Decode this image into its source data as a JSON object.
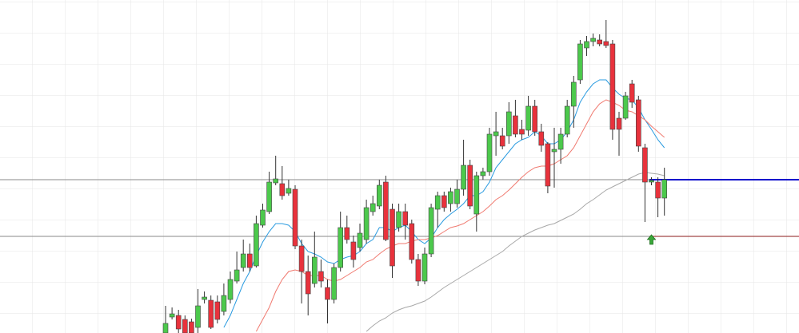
{
  "chart_data": {
    "type": "candlestick",
    "categories": [
      null,
      null,
      null,
      null,
      null,
      null,
      null,
      null,
      null,
      null,
      null,
      null,
      null,
      null,
      null,
      null,
      null,
      null,
      null,
      null,
      null,
      null,
      null,
      null,
      null,
      null,
      null,
      null,
      null,
      null,
      null,
      null,
      null,
      null,
      null,
      null,
      null,
      null,
      null,
      null,
      null,
      null,
      null,
      null,
      null,
      null,
      null,
      null,
      null,
      null,
      null,
      null,
      null,
      null,
      null,
      null,
      null,
      null,
      null,
      null,
      null,
      null,
      null,
      null,
      null,
      null,
      null,
      null,
      null,
      null,
      null,
      null,
      null,
      null,
      null,
      null,
      null,
      null
    ],
    "open": [
      0,
      20,
      22,
      17,
      14,
      7,
      42,
      41,
      39,
      27,
      42,
      65,
      82,
      99,
      84,
      135,
      152,
      188,
      187,
      175,
      180,
      109,
      77,
      62,
      77,
      57,
      42,
      82,
      132,
      114,
      107,
      117,
      152,
      159,
      189,
      155,
      132,
      152,
      137,
      92,
      65,
      99,
      155,
      172,
      162,
      162,
      180,
      210,
      149,
      197,
      202,
      247,
      247,
      247,
      272,
      255,
      254,
      284,
      252,
      237,
      227,
      230,
      249,
      284,
      317,
      357,
      365,
      367,
      365,
      362,
      269,
      269,
      312,
      292,
      232,
      189,
      189,
      169
    ],
    "high": [
      34,
      32,
      29,
      22,
      18,
      55,
      52,
      47,
      47,
      62,
      77,
      102,
      117,
      112,
      147,
      162,
      202,
      222,
      209,
      192,
      185,
      117,
      97,
      127,
      92,
      67,
      87,
      152,
      147,
      122,
      137,
      167,
      172,
      192,
      197,
      162,
      162,
      162,
      142,
      99,
      107,
      162,
      177,
      177,
      182,
      192,
      242,
      217,
      202,
      207,
      257,
      277,
      257,
      289,
      292,
      267,
      297,
      292,
      262,
      239,
      257,
      257,
      292,
      322,
      367,
      372,
      375,
      374,
      392,
      367,
      277,
      302,
      317,
      297,
      237,
      195,
      195,
      207
    ],
    "low": [
      0,
      17,
      0,
      0,
      0,
      0,
      37,
      5,
      12,
      22,
      37,
      62,
      77,
      77,
      82,
      132,
      149,
      185,
      167,
      172,
      105,
      37,
      22,
      57,
      57,
      12,
      37,
      77,
      112,
      82,
      102,
      112,
      147,
      155,
      115,
      69,
      127,
      117,
      87,
      59,
      61,
      95,
      132,
      152,
      152,
      157,
      172,
      155,
      127,
      192,
      197,
      222,
      230,
      237,
      245,
      242,
      247,
      247,
      227,
      175,
      182,
      212,
      245,
      257,
      312,
      347,
      359,
      359,
      357,
      242,
      222,
      267,
      282,
      227,
      139,
      185,
      145,
      147
    ],
    "close": [
      12,
      24,
      5,
      0,
      0,
      34,
      45,
      7,
      17,
      47,
      67,
      79,
      99,
      82,
      137,
      154,
      189,
      193,
      172,
      181,
      109,
      77,
      49,
      95,
      65,
      42,
      82,
      132,
      117,
      92,
      125,
      157,
      162,
      185,
      117,
      84,
      152,
      135,
      92,
      65,
      99,
      157,
      172,
      157,
      177,
      180,
      210,
      159,
      197,
      202,
      249,
      252,
      234,
      277,
      249,
      249,
      284,
      252,
      235,
      184,
      230,
      249,
      284,
      314,
      362,
      365,
      369,
      362,
      360,
      255,
      255,
      297,
      289,
      234,
      189,
      191,
      169,
      192
    ],
    "up_color": "#4cc94c",
    "down_color": "#e8323c",
    "overlays": [
      {
        "color": "#2a9be0",
        "values": [
          null,
          null,
          null,
          null,
          null,
          null,
          null,
          null,
          null,
          7,
          22,
          42,
          62,
          77,
          97,
          114,
          127,
          137,
          137,
          135,
          127,
          112,
          102,
          99,
          95,
          89,
          87,
          92,
          95,
          97,
          102,
          112,
          117,
          132,
          132,
          127,
          132,
          135,
          127,
          117,
          112,
          119,
          132,
          142,
          149,
          155,
          162,
          172,
          172,
          177,
          189,
          207,
          217,
          227,
          237,
          242,
          245,
          252,
          247,
          237,
          237,
          242,
          252,
          267,
          289,
          302,
          312,
          317,
          317,
          307,
          299,
          294,
          292,
          282,
          267,
          255,
          242,
          232
        ]
      },
      {
        "color": "#f07a70",
        "values": [
          null,
          null,
          null,
          null,
          null,
          null,
          null,
          null,
          null,
          null,
          null,
          null,
          null,
          null,
          2,
          17,
          32,
          52,
          67,
          77,
          79,
          77,
          72,
          72,
          72,
          67,
          65,
          67,
          72,
          77,
          82,
          89,
          92,
          99,
          105,
          109,
          112,
          112,
          115,
          117,
          117,
          119,
          122,
          127,
          132,
          134,
          137,
          142,
          147,
          152,
          159,
          167,
          172,
          179,
          187,
          195,
          202,
          207,
          209,
          209,
          212,
          217,
          222,
          232,
          247,
          262,
          277,
          287,
          292,
          289,
          285,
          279,
          277,
          272,
          267,
          259,
          252,
          245
        ]
      },
      {
        "color": "#a8a8a8",
        "values": [
          null,
          null,
          null,
          null,
          null,
          null,
          null,
          null,
          null,
          null,
          null,
          null,
          null,
          null,
          null,
          null,
          null,
          null,
          null,
          null,
          null,
          null,
          null,
          null,
          null,
          null,
          null,
          null,
          null,
          null,
          null,
          2,
          9,
          15,
          19,
          25,
          29,
          32,
          34,
          37,
          40,
          45,
          51,
          57,
          62,
          67,
          72,
          77,
          82,
          87,
          92,
          97,
          102,
          109,
          115,
          121,
          125,
          129,
          132,
          135,
          137,
          141,
          145,
          149,
          155,
          162,
          167,
          173,
          179,
          183,
          187,
          191,
          195,
          199,
          201,
          200,
          199,
          197
        ]
      }
    ],
    "levels": [
      {
        "value": 192,
        "color": "#0000cc"
      },
      {
        "value": 121,
        "color": "#8b1a1a"
      }
    ],
    "signals": [
      {
        "index": 75,
        "value": 117,
        "color": "#3aa83a"
      }
    ],
    "ylim": [
      0,
      417
    ]
  }
}
